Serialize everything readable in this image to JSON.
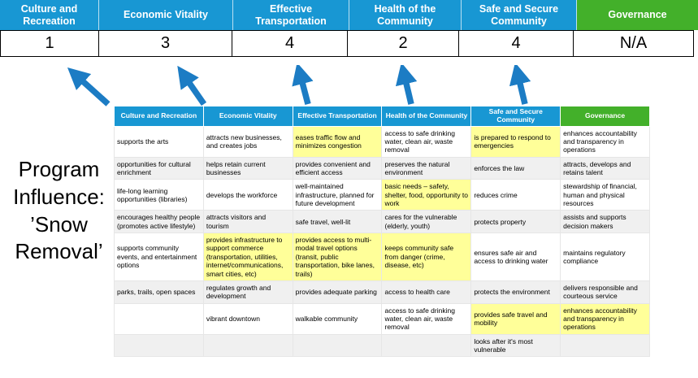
{
  "title": "Program Influence: ’Snow Removal’",
  "colors": {
    "header_blue": "#1897D3",
    "header_green": "#43B02A",
    "highlight_yellow": "#FFFF99",
    "arrow_blue": "#1C7CC4"
  },
  "pillars": [
    {
      "label": "Culture and Recreation",
      "score": "1"
    },
    {
      "label": "Economic Vitality",
      "score": "3"
    },
    {
      "label": "Effective Transportation",
      "score": "4"
    },
    {
      "label": "Health of the Community",
      "score": "2"
    },
    {
      "label": "Safe and Secure Community",
      "score": "4"
    },
    {
      "label": "Governance",
      "score": "N/A"
    }
  ],
  "table": {
    "headers": [
      "Culture and Recreation",
      "Economic Vitality",
      "Effective Transportation",
      "Health of the Community",
      "Safe and Secure Community",
      "Governance"
    ],
    "rows": [
      [
        {
          "text": "supports the arts",
          "highlight": false
        },
        {
          "text": "attracts new businesses, and creates jobs",
          "highlight": false
        },
        {
          "text": "eases traffic flow and minimizes congestion",
          "highlight": true
        },
        {
          "text": "access to safe drinking water, clean air, waste removal",
          "highlight": false
        },
        {
          "text": "is prepared to respond to emergencies",
          "highlight": true
        },
        {
          "text": "enhances accountability and transparency in operations",
          "highlight": false
        }
      ],
      [
        {
          "text": "opportunities for cultural enrichment",
          "highlight": false
        },
        {
          "text": "helps retain current businesses",
          "highlight": true
        },
        {
          "text": "provides convenient and efficient access",
          "highlight": true
        },
        {
          "text": "preserves the natural environment",
          "highlight": false
        },
        {
          "text": "enforces the law",
          "highlight": false
        },
        {
          "text": "attracts, develops and retains talent",
          "highlight": false
        }
      ],
      [
        {
          "text": "life-long learning opportunities (libraries)",
          "highlight": false
        },
        {
          "text": "develops the workforce",
          "highlight": false
        },
        {
          "text": "well-maintained infrastructure, planned for future development",
          "highlight": false
        },
        {
          "text": "basic needs – safety, shelter, food, opportunity to work",
          "highlight": true
        },
        {
          "text": "reduces crime",
          "highlight": false
        },
        {
          "text": "stewardship of financial, human and physical resources",
          "highlight": false
        }
      ],
      [
        {
          "text": "encourages healthy people (promotes active lifestyle)",
          "highlight": false
        },
        {
          "text": "attracts visitors and tourism",
          "highlight": false
        },
        {
          "text": "safe travel, well-lit",
          "highlight": true
        },
        {
          "text": "cares for the vulnerable (elderly, youth)",
          "highlight": true
        },
        {
          "text": "protects property",
          "highlight": true
        },
        {
          "text": "assists and supports decision makers",
          "highlight": false
        }
      ],
      [
        {
          "text": "supports community events, and entertainment options",
          "highlight": false
        },
        {
          "text": "provides infrastructure to support commerce (transportation, utilities, internet/communications, smart cities, etc)",
          "highlight": true
        },
        {
          "text": "provides access to multi-modal travel options (transit, public transportation, bike lanes, trails)",
          "highlight": true
        },
        {
          "text": "keeps community safe from danger (crime, disease, etc)",
          "highlight": true
        },
        {
          "text": "ensures safe air and access to drinking water",
          "highlight": false
        },
        {
          "text": "maintains regulatory compliance",
          "highlight": false
        }
      ],
      [
        {
          "text": "parks, trails, open spaces",
          "highlight": true
        },
        {
          "text": "regulates growth and development",
          "highlight": false
        },
        {
          "text": "provides adequate parking",
          "highlight": false
        },
        {
          "text": "access to health care",
          "highlight": false
        },
        {
          "text": "protects the environment",
          "highlight": false
        },
        {
          "text": "delivers responsible and courteous service",
          "highlight": false
        }
      ],
      [
        {
          "text": "",
          "highlight": false
        },
        {
          "text": "vibrant downtown",
          "highlight": false
        },
        {
          "text": "walkable community",
          "highlight": false
        },
        {
          "text": "access to safe drinking water, clean air, waste removal",
          "highlight": false
        },
        {
          "text": "provides safe travel and mobility",
          "highlight": true
        },
        {
          "text": "enhances accountability and transparency in operations",
          "highlight": true
        }
      ],
      [
        {
          "text": "",
          "highlight": false
        },
        {
          "text": "",
          "highlight": false
        },
        {
          "text": "",
          "highlight": false
        },
        {
          "text": "",
          "highlight": false
        },
        {
          "text": "looks after it's most vulnerable",
          "highlight": true
        },
        {
          "text": "",
          "highlight": false
        }
      ]
    ]
  }
}
